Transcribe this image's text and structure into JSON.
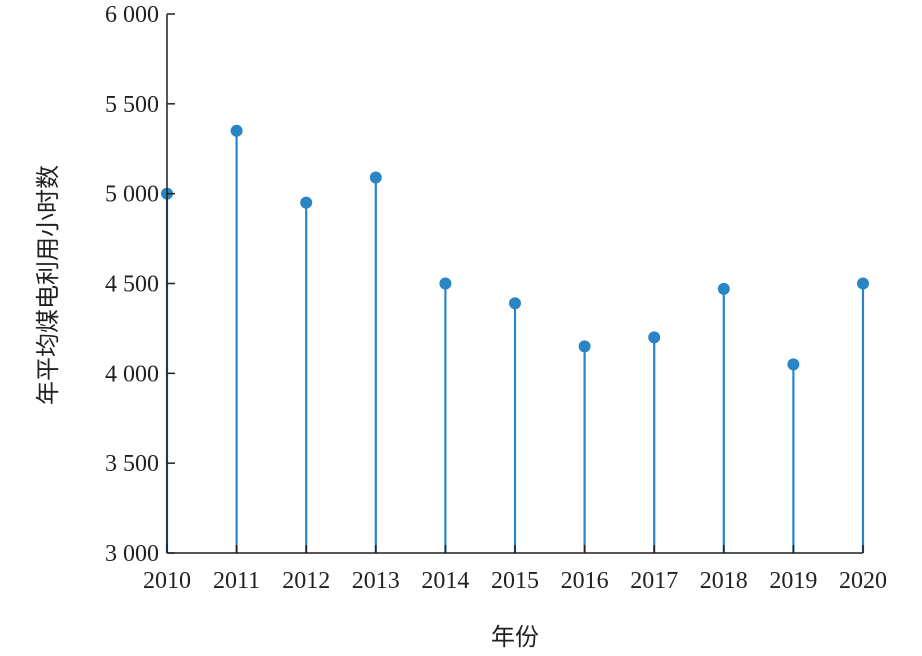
{
  "chart_data": {
    "type": "stem",
    "x": [
      "2010",
      "2011",
      "2012",
      "2013",
      "2014",
      "2015",
      "2016",
      "2017",
      "2018",
      "2019",
      "2020"
    ],
    "values": [
      5000,
      5350,
      4950,
      5090,
      4500,
      4390,
      4150,
      4200,
      4470,
      4050,
      4500
    ],
    "xlabel": "年份",
    "ylabel": "年平均煤电利用小时数",
    "ylim": [
      3000,
      6000
    ],
    "yticks": [
      3000,
      3500,
      4000,
      4500,
      5000,
      5500,
      6000
    ],
    "ytick_labels": [
      "3 000",
      "3 500",
      "4 000",
      "4 500",
      "5 000",
      "5 500",
      "6 000"
    ],
    "grid": false,
    "colors": {
      "series": "#2a85c5",
      "axis": "#231f20"
    }
  }
}
